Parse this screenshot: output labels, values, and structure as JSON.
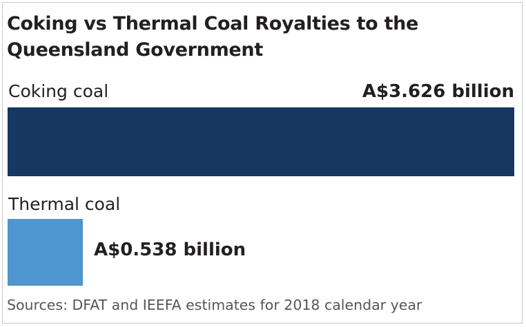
{
  "chart_data": {
    "type": "bar",
    "orientation": "horizontal",
    "title": "Coking vs Thermal Coal Royalties to the Queensland Government",
    "categories": [
      "Coking coal",
      "Thermal coal"
    ],
    "values": [
      3.626,
      0.538
    ],
    "value_labels": [
      "A$3.626 billion",
      "A$0.538 billion"
    ],
    "units": "A$ billion",
    "colors": [
      "#173660",
      "#4f95d0"
    ],
    "source": "Sources: DFAT and IEEFA estimates for 2018 calendar year",
    "grid": false,
    "legend": "none"
  }
}
